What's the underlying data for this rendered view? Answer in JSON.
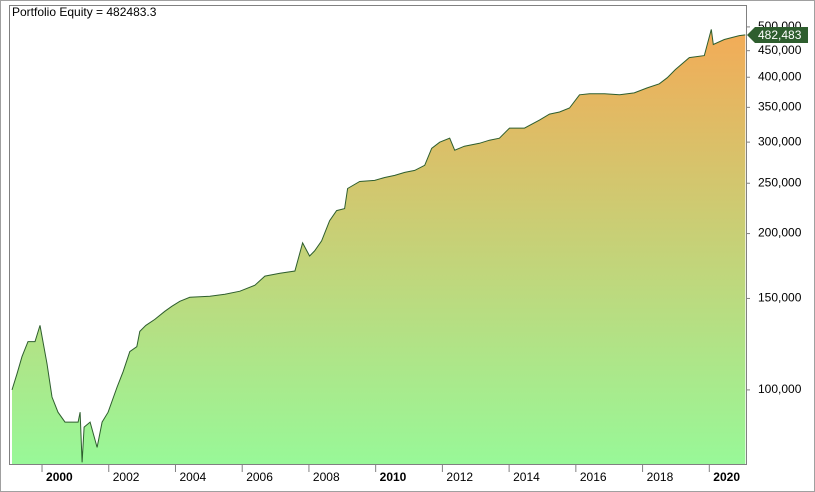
{
  "chart_data": {
    "type": "area",
    "title": "Portfolio Equity = 482483.3",
    "x": [
      1999.1,
      1999.25,
      1999.4,
      1999.58,
      1999.79,
      1999.94,
      2000.15,
      2000.3,
      2000.48,
      2000.69,
      2001.08,
      2001.14,
      2001.2,
      2001.26,
      2001.44,
      2001.65,
      2001.8,
      2001.98,
      2002.25,
      2002.43,
      2002.63,
      2002.84,
      2002.93,
      2003.11,
      2003.38,
      2003.68,
      2003.89,
      2004.13,
      2004.43,
      2005.03,
      2005.48,
      2005.93,
      2006.38,
      2006.68,
      2007.13,
      2007.58,
      2007.81,
      2008.02,
      2008.17,
      2008.38,
      2008.62,
      2008.83,
      2009.07,
      2009.16,
      2009.52,
      2009.97,
      2010.27,
      2010.57,
      2010.87,
      2011.17,
      2011.47,
      2011.68,
      2011.92,
      2012.22,
      2012.37,
      2012.66,
      2013.11,
      2013.41,
      2013.71,
      2014.01,
      2014.46,
      2014.91,
      2015.21,
      2015.51,
      2015.81,
      2016.11,
      2016.41,
      2016.86,
      2017.31,
      2017.75,
      2018.14,
      2018.5,
      2018.74,
      2018.98,
      2019.4,
      2019.85,
      2020.06,
      2020.12,
      2020.45,
      2020.9,
      2021.08
    ],
    "series": [
      {
        "name": "Portfolio Equity",
        "color": "#2e5e2e",
        "values": [
          100000,
          107400,
          115900,
          123900,
          123900,
          133100,
          112300,
          96900,
          90600,
          86700,
          86700,
          90600,
          72500,
          84800,
          86700,
          77500,
          86700,
          90600,
          101300,
          108400,
          118500,
          121100,
          129600,
          133100,
          136700,
          141700,
          144900,
          148100,
          150800,
          151500,
          152800,
          154900,
          159100,
          165600,
          167800,
          169400,
          191900,
          181100,
          185200,
          193600,
          211700,
          221400,
          223400,
          244200,
          251900,
          253200,
          256500,
          258800,
          262300,
          264600,
          270700,
          291900,
          299900,
          305300,
          289400,
          294600,
          298500,
          302600,
          305300,
          319200,
          319200,
          330800,
          339700,
          342800,
          349000,
          370000,
          371600,
          371600,
          370000,
          373200,
          381600,
          388500,
          399100,
          413700,
          436300,
          440300,
          494400,
          462400,
          472900,
          481200,
          482483.3
        ]
      }
    ],
    "marker": {
      "value": 482483.3,
      "label": "482,483"
    },
    "log_scale": true,
    "xlim": [
      1999.04,
      2021.1
    ],
    "xticks": [
      2000,
      2002,
      2004,
      2006,
      2008,
      2010,
      2012,
      2014,
      2016,
      2018,
      2020
    ],
    "ylim": [
      72000,
      551000
    ],
    "yticks": [
      {
        "value": 100000,
        "label": "100,000"
      },
      {
        "value": 150000,
        "label": "150,000"
      },
      {
        "value": 200000,
        "label": "200,000"
      },
      {
        "value": 250000,
        "label": "250,000"
      },
      {
        "value": 300000,
        "label": "300,000"
      },
      {
        "value": 350000,
        "label": "350,000"
      },
      {
        "value": 400000,
        "label": "400,000"
      },
      {
        "value": 450000,
        "label": "450,000"
      },
      {
        "value": 500000,
        "label": "500,000"
      }
    ],
    "gradient": [
      "#f3ab57",
      "#98f898"
    ]
  }
}
